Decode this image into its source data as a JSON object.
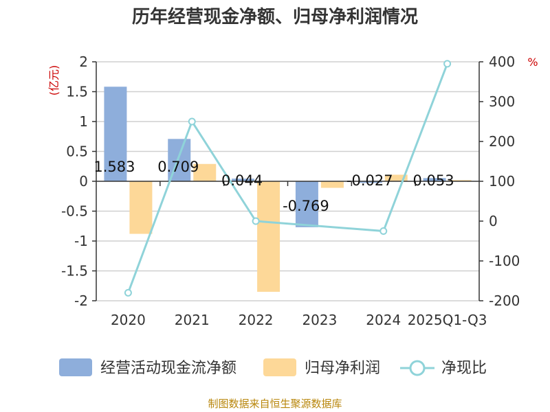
{
  "title": "历年经营现金净额、归母净利润情况",
  "source": "制图数据来自恒生聚源数据库",
  "chart_data": {
    "type": "bar",
    "categories": [
      "2020",
      "2021",
      "2022",
      "2023",
      "2024",
      "2025Q1-Q3"
    ],
    "series": [
      {
        "name": "经营活动现金流净额",
        "type": "bar",
        "axis": "left",
        "color": "#8eaedb",
        "values": [
          1.583,
          0.709,
          0.044,
          -0.769,
          -0.027,
          0.053
        ]
      },
      {
        "name": "归母净利润",
        "type": "bar",
        "axis": "left",
        "color": "#fdd898",
        "values": [
          -0.88,
          0.29,
          -1.85,
          -0.11,
          0.11,
          0.02
        ]
      },
      {
        "name": "净现比",
        "type": "line",
        "axis": "right",
        "color": "#8fd3d9",
        "values": [
          -180,
          250,
          0,
          null,
          -25,
          395
        ]
      }
    ],
    "data_labels": [
      "1.583",
      "0.709",
      "0.044",
      "-0.769",
      "-0.027",
      "0.053"
    ],
    "y_left": {
      "unit": "(亿元)",
      "ylim": [
        -2,
        2
      ],
      "ticks": [
        "2",
        "1.5",
        "1",
        "0.5",
        "0",
        "-0.5",
        "-1",
        "-1.5",
        "-2"
      ]
    },
    "y_right": {
      "unit": "%",
      "ylim": [
        -200,
        400
      ],
      "ticks": [
        "400",
        "300",
        "200",
        "100",
        "0",
        "-100",
        "-200"
      ]
    },
    "grid": true,
    "legend": "bottom"
  }
}
